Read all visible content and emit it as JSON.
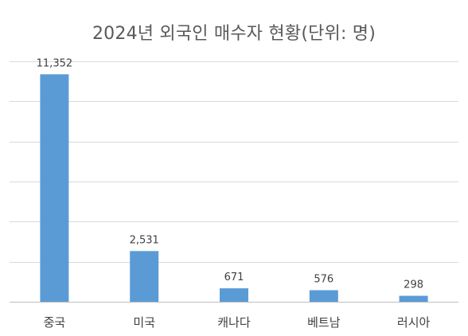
{
  "chart_data": {
    "type": "bar",
    "title": "2024년 외국인 매수자 현황(단위: 명)",
    "categories": [
      "중국",
      "미국",
      "캐나다",
      "베트남",
      "러시아"
    ],
    "values": [
      11352,
      2531,
      671,
      576,
      298
    ],
    "value_labels": [
      "11,352",
      "2,531",
      "671",
      "576",
      "298"
    ],
    "ylim": [
      0,
      12000
    ],
    "ytick_step": 2000,
    "grid": true,
    "legend": "none",
    "bar_color": "#5b9bd5",
    "grid_color": "#d9d9d9",
    "axis_color": "#bfbfbf",
    "text_color": "#404040"
  }
}
